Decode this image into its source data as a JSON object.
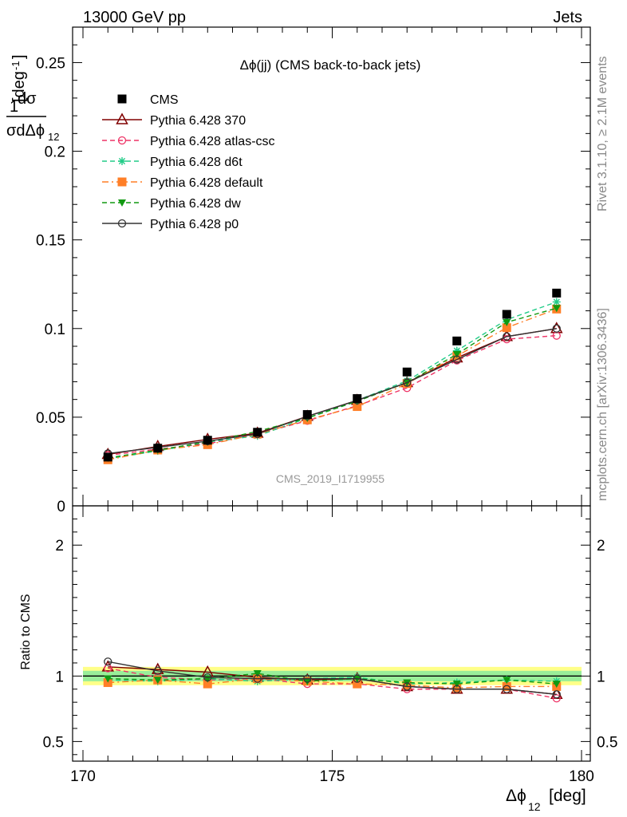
{
  "header": {
    "left": "13000 GeV pp",
    "right": "Jets"
  },
  "side_text": {
    "rivet": "Rivet 3.1.10, ≥ 2.1M events",
    "mcplots": "mcplots.cern.ch [arXiv:1306.3436]"
  },
  "watermark": "CMS_2019_I1719955",
  "chart_data": [
    {
      "type": "line",
      "title": "Δϕ(jj) (CMS back-to-back jets)",
      "ylabel": "1/σ dσ/dΔϕ_12 [deg^-1]",
      "xlim": [
        170,
        180
      ],
      "ylim": [
        0,
        0.27
      ],
      "yticks": [
        "0",
        "0.05",
        "0.1",
        "0.15",
        "0.2",
        "0.25"
      ],
      "x": [
        170.5,
        171.5,
        172.5,
        173.5,
        174.5,
        175.5,
        176.5,
        177.5,
        178.5,
        179.5
      ],
      "series": [
        {
          "name": "CMS",
          "color": "#000000",
          "marker": "square",
          "dash": "none",
          "values": [
            0.0275,
            0.0325,
            0.037,
            0.0415,
            0.0515,
            0.0605,
            0.0755,
            0.093,
            0.108,
            0.12
          ]
        },
        {
          "name": "Pythia 6.428 370",
          "color": "#800000",
          "marker": "triangle-open",
          "dash": "solid",
          "values": [
            0.029,
            0.0335,
            0.0375,
            0.041,
            0.0505,
            0.0595,
            0.0695,
            0.0835,
            0.0955,
            0.1
          ]
        },
        {
          "name": "Pythia 6.428 atlas-csc",
          "color": "#ee3366",
          "marker": "circle-open",
          "dash": "dashed",
          "values": [
            0.0285,
            0.032,
            0.035,
            0.0405,
            0.048,
            0.0565,
            0.0665,
            0.082,
            0.094,
            0.096
          ]
        },
        {
          "name": "Pythia 6.428 d6t",
          "color": "#22cc88",
          "marker": "star",
          "dash": "dashed",
          "values": [
            0.0265,
            0.031,
            0.036,
            0.0395,
            0.0495,
            0.0595,
            0.0705,
            0.0875,
            0.105,
            0.115
          ]
        },
        {
          "name": "Pythia 6.428 default",
          "color": "#ff7f27",
          "marker": "square",
          "dash": "dashdot",
          "values": [
            0.026,
            0.0315,
            0.0345,
            0.0405,
            0.0485,
            0.056,
            0.069,
            0.0845,
            0.1005,
            0.111
          ]
        },
        {
          "name": "Pythia 6.428 dw",
          "color": "#119911",
          "marker": "triangle-down",
          "dash": "dashed",
          "values": [
            0.027,
            0.0315,
            0.036,
            0.042,
            0.0495,
            0.059,
            0.0695,
            0.0855,
            0.1035,
            0.1115
          ]
        },
        {
          "name": "Pythia 6.428 p0",
          "color": "#333333",
          "marker": "circle-open",
          "dash": "solid",
          "values": [
            0.0295,
            0.033,
            0.0365,
            0.0405,
            0.0505,
            0.0595,
            0.0695,
            0.0825,
            0.0955,
            0.1
          ]
        }
      ]
    },
    {
      "type": "line",
      "ylabel": "Ratio to CMS",
      "xlabel": "Δϕ_12 [deg]",
      "xlim": [
        170,
        180
      ],
      "ylim": [
        0.35,
        2.3
      ],
      "yticks": [
        "0.5",
        "1",
        "2"
      ],
      "xticks": [
        "170",
        "175",
        "180"
      ],
      "band_inner": [
        0.96,
        1.04
      ],
      "band_outer": [
        0.93,
        1.07
      ],
      "series": [
        {
          "name": "Pythia 6.428 370",
          "values": [
            1.07,
            1.05,
            1.03,
            0.99,
            0.97,
            0.98,
            0.92,
            0.9,
            0.9,
            0.86
          ]
        },
        {
          "name": "Pythia 6.428 atlas-csc",
          "values": [
            1.06,
            0.99,
            0.97,
            0.98,
            0.94,
            0.94,
            0.9,
            0.9,
            0.9,
            0.83
          ]
        },
        {
          "name": "Pythia 6.428 d6t",
          "values": [
            0.97,
            0.96,
            0.98,
            0.96,
            0.98,
            0.99,
            0.94,
            0.95,
            0.97,
            0.96
          ]
        },
        {
          "name": "Pythia 6.428 default",
          "values": [
            0.95,
            0.97,
            0.94,
            0.98,
            0.96,
            0.94,
            0.93,
            0.91,
            0.92,
            0.92
          ]
        },
        {
          "name": "Pythia 6.428 dw",
          "values": [
            0.98,
            0.97,
            0.98,
            1.02,
            0.96,
            0.98,
            0.95,
            0.94,
            0.97,
            0.94
          ]
        },
        {
          "name": "Pythia 6.428 p0",
          "values": [
            1.11,
            1.04,
            0.99,
            0.98,
            0.98,
            0.98,
            0.92,
            0.9,
            0.9,
            0.86
          ]
        }
      ]
    }
  ]
}
